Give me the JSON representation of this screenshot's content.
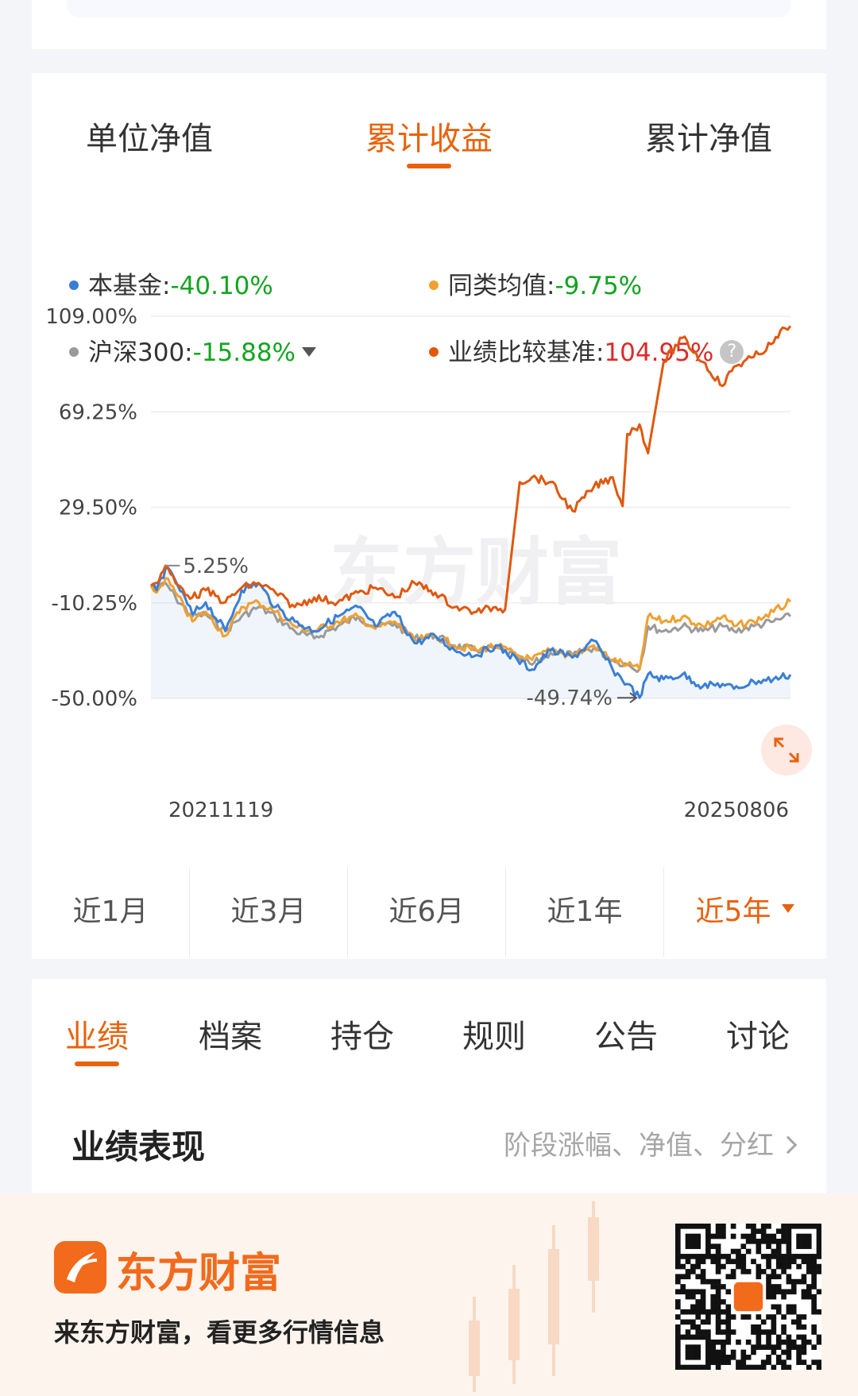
{
  "top_tabs": [
    {
      "label": "单位净值",
      "active": false
    },
    {
      "label": "累计收益",
      "active": true
    },
    {
      "label": "累计净值",
      "active": false
    }
  ],
  "legend": {
    "fund": {
      "name": "本基金",
      "value": "-40.10%",
      "color": "#3a7fd5"
    },
    "category_avg": {
      "name": "同类均值",
      "value": "-9.75%",
      "color": "#f0a030"
    },
    "hs300": {
      "name": "沪深300",
      "value": "-15.88%",
      "color": "#9a9a9a"
    },
    "benchmark": {
      "name": "业绩比较基准",
      "value": "104.95%",
      "color": "#e0580e"
    }
  },
  "chart_data": {
    "type": "line",
    "yticks": [
      "109.00%",
      "69.25%",
      "29.50%",
      "-10.25%",
      "-50.00%"
    ],
    "ylim": [
      -50,
      109
    ],
    "x_start_label": "20211119",
    "x_end_label": "20250806",
    "x_range": [
      "2021-11-19",
      "2025-08-06"
    ],
    "annotations": {
      "max_label": "5.25%",
      "min_label": "-49.74%"
    },
    "watermark": "东方财富",
    "series": [
      {
        "name": "本基金",
        "color": "#3a7fd5",
        "x": [
          "2021-11-19",
          "2021-12-01",
          "2021-12-20",
          "2022-01-10",
          "2022-02-15",
          "2022-03-15",
          "2022-04-26",
          "2022-05-30",
          "2022-07-05",
          "2022-08-10",
          "2022-09-20",
          "2022-10-31",
          "2022-12-20",
          "2023-02-01",
          "2023-03-10",
          "2023-04-20",
          "2023-06-01",
          "2023-07-15",
          "2023-08-25",
          "2023-10-10",
          "2023-11-20",
          "2024-01-05",
          "2024-02-05",
          "2024-03-15",
          "2024-05-01",
          "2024-06-15",
          "2024-07-25",
          "2024-08-25",
          "2024-09-20",
          "2024-10-08",
          "2024-11-10",
          "2024-12-20",
          "2025-02-01",
          "2025-03-15",
          "2025-04-08",
          "2025-05-20",
          "2025-07-01",
          "2025-08-06"
        ],
        "values": [
          -3,
          -5,
          4,
          -1,
          -15,
          -10,
          -22,
          -5,
          -2,
          -12,
          -18,
          -22,
          -16,
          -12,
          -20,
          -14,
          -27,
          -24,
          -30,
          -32,
          -28,
          -34,
          -38,
          -30,
          -33,
          -26,
          -38,
          -44,
          -49.74,
          -40,
          -42,
          -40,
          -45,
          -44,
          -46,
          -43,
          -42,
          -40.1
        ]
      },
      {
        "name": "同类均值",
        "color": "#f0a030",
        "x": [
          "2021-11-19",
          "2021-12-01",
          "2021-12-20",
          "2022-01-10",
          "2022-02-15",
          "2022-03-15",
          "2022-04-26",
          "2022-05-30",
          "2022-07-05",
          "2022-08-10",
          "2022-09-20",
          "2022-10-31",
          "2022-12-20",
          "2023-02-01",
          "2023-03-10",
          "2023-04-20",
          "2023-06-01",
          "2023-07-15",
          "2023-08-25",
          "2023-10-10",
          "2023-11-20",
          "2024-01-05",
          "2024-02-05",
          "2024-03-15",
          "2024-05-01",
          "2024-06-15",
          "2024-07-25",
          "2024-08-25",
          "2024-09-20",
          "2024-10-08",
          "2024-11-10",
          "2024-12-20",
          "2025-02-01",
          "2025-03-15",
          "2025-04-08",
          "2025-05-20",
          "2025-07-01",
          "2025-08-06"
        ],
        "values": [
          -3,
          -6,
          0,
          -6,
          -18,
          -14,
          -24,
          -12,
          -10,
          -14,
          -20,
          -22,
          -18,
          -16,
          -21,
          -18,
          -26,
          -24,
          -28,
          -30,
          -28,
          -32,
          -34,
          -30,
          -32,
          -28,
          -34,
          -36,
          -38,
          -16,
          -18,
          -16,
          -20,
          -16,
          -20,
          -18,
          -14,
          -9.75
        ]
      },
      {
        "name": "沪深300",
        "color": "#9a9a9a",
        "x": [
          "2021-11-19",
          "2021-12-01",
          "2021-12-20",
          "2022-01-10",
          "2022-02-15",
          "2022-03-15",
          "2022-04-26",
          "2022-05-30",
          "2022-07-05",
          "2022-08-10",
          "2022-09-20",
          "2022-10-31",
          "2022-12-20",
          "2023-02-01",
          "2023-03-10",
          "2023-04-20",
          "2023-06-01",
          "2023-07-15",
          "2023-08-25",
          "2023-10-10",
          "2023-11-20",
          "2024-01-05",
          "2024-02-05",
          "2024-03-15",
          "2024-05-01",
          "2024-06-15",
          "2024-07-25",
          "2024-08-25",
          "2024-09-20",
          "2024-10-08",
          "2024-11-10",
          "2024-12-20",
          "2025-02-01",
          "2025-03-15",
          "2025-04-08",
          "2025-05-20",
          "2025-07-01",
          "2025-08-06"
        ],
        "values": [
          -3,
          -5,
          -2,
          -8,
          -16,
          -15,
          -22,
          -16,
          -12,
          -16,
          -22,
          -25,
          -20,
          -16,
          -20,
          -19,
          -25,
          -24,
          -28,
          -30,
          -29,
          -33,
          -36,
          -31,
          -32,
          -29,
          -34,
          -36,
          -38,
          -20,
          -22,
          -20,
          -22,
          -20,
          -22,
          -20,
          -18,
          -15.88
        ]
      },
      {
        "name": "业绩比较基准",
        "color": "#e0580e",
        "x": [
          "2021-11-19",
          "2021-12-01",
          "2021-12-20",
          "2022-01-10",
          "2022-02-15",
          "2022-03-15",
          "2022-04-26",
          "2022-05-30",
          "2022-07-05",
          "2022-08-10",
          "2022-09-20",
          "2022-10-31",
          "2022-12-20",
          "2023-02-01",
          "2023-03-10",
          "2023-04-20",
          "2023-06-01",
          "2023-07-15",
          "2023-08-25",
          "2023-10-10",
          "2023-11-20",
          "2023-12-10",
          "2024-01-10",
          "2024-02-05",
          "2024-03-15",
          "2024-05-01",
          "2024-06-15",
          "2024-07-25",
          "2024-08-15",
          "2024-08-25",
          "2024-09-20",
          "2024-10-08",
          "2024-11-10",
          "2024-12-20",
          "2025-02-01",
          "2025-03-15",
          "2025-04-08",
          "2025-05-20",
          "2025-07-01",
          "2025-07-25",
          "2025-08-06"
        ],
        "values": [
          -3,
          -2,
          5.25,
          -2,
          -8,
          -5,
          -10,
          -4,
          -2,
          -6,
          -12,
          -8,
          -10,
          -6,
          -4,
          -8,
          -2,
          -6,
          -12,
          -14,
          -12,
          -13,
          40,
          42,
          40,
          28,
          38,
          42,
          30,
          60,
          64,
          52,
          90,
          100,
          90,
          80,
          88,
          92,
          98,
          104,
          104.95
        ]
      }
    ]
  },
  "periods": [
    {
      "label": "近1月",
      "active": false
    },
    {
      "label": "近3月",
      "active": false
    },
    {
      "label": "近6月",
      "active": false
    },
    {
      "label": "近1年",
      "active": false
    },
    {
      "label": "近5年",
      "active": true
    }
  ],
  "section_tabs": [
    {
      "label": "业绩",
      "active": true
    },
    {
      "label": "档案",
      "active": false
    },
    {
      "label": "持仓",
      "active": false
    },
    {
      "label": "规则",
      "active": false
    },
    {
      "label": "公告",
      "active": false
    },
    {
      "label": "讨论",
      "active": false
    }
  ],
  "performance": {
    "title": "业绩表现",
    "link": "阶段涨幅、净值、分红"
  },
  "footer": {
    "brand": "东方财富",
    "tagline": "来东方财富，看更多行情信息"
  },
  "icons": {
    "help": "question-circle-icon",
    "expand": "expand-arrows-icon",
    "dropdown": "caret-down-icon",
    "chevron": "chevron-right-icon",
    "logo": "eastmoney-logo-icon",
    "qr": "qr-code-icon"
  }
}
